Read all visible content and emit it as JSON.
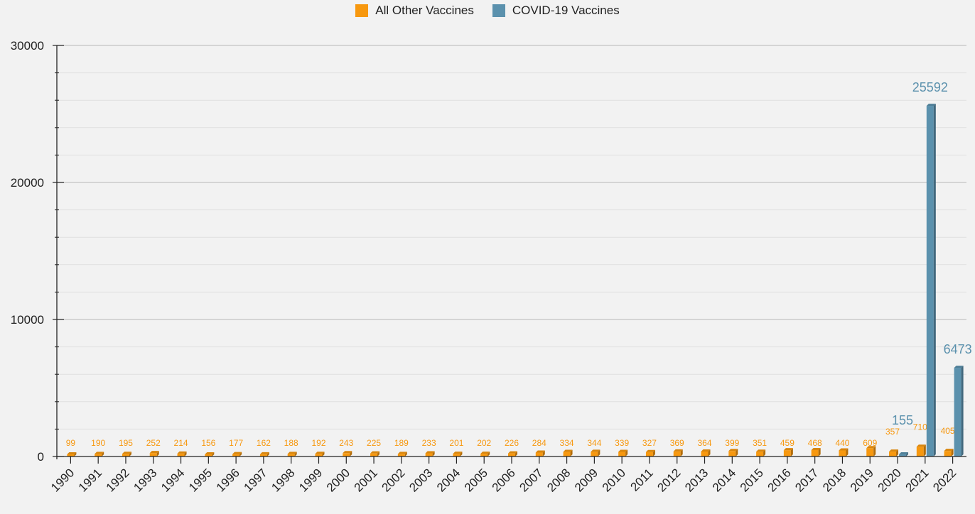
{
  "chart_data": {
    "type": "bar",
    "title": "",
    "xlabel": "",
    "ylabel": "",
    "ylim": [
      0,
      30000
    ],
    "yticks": [
      0,
      10000,
      20000,
      30000
    ],
    "grid": true,
    "legend_position": "top-center",
    "categories": [
      "1990",
      "1991",
      "1992",
      "1993",
      "1994",
      "1995",
      "1996",
      "1997",
      "1998",
      "1999",
      "2000",
      "2001",
      "2002",
      "2003",
      "2004",
      "2005",
      "2006",
      "2007",
      "2008",
      "2009",
      "2010",
      "2011",
      "2012",
      "2013",
      "2014",
      "2015",
      "2016",
      "2017",
      "2018",
      "2019",
      "2020",
      "2021",
      "2022"
    ],
    "series": [
      {
        "name": "All Other Vaccines",
        "color": "#f7980f",
        "values": [
          99,
          190,
          195,
          252,
          214,
          156,
          177,
          162,
          188,
          192,
          243,
          225,
          189,
          233,
          201,
          202,
          226,
          284,
          334,
          344,
          339,
          327,
          369,
          364,
          399,
          351,
          459,
          468,
          440,
          609,
          357,
          710,
          405
        ]
      },
      {
        "name": "COVID-19 Vaccines",
        "color": "#5b91ad",
        "values": [
          null,
          null,
          null,
          null,
          null,
          null,
          null,
          null,
          null,
          null,
          null,
          null,
          null,
          null,
          null,
          null,
          null,
          null,
          null,
          null,
          null,
          null,
          null,
          null,
          null,
          null,
          null,
          null,
          null,
          null,
          155,
          25592,
          6473
        ]
      }
    ]
  }
}
